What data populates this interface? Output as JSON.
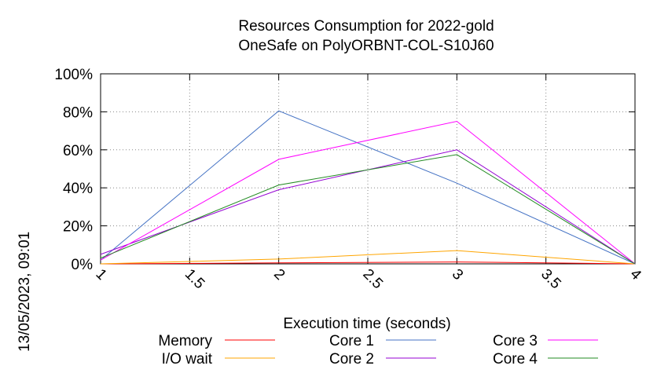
{
  "chart_data": {
    "type": "line",
    "title": "Resources Consumption for 2022-gold",
    "subtitle": "OneSafe on PolyORBNT-COL-S10J60",
    "xlabel": "Execution time (seconds)",
    "ylabel": "",
    "timestamp": "13/05/2023, 09:01",
    "x": [
      1,
      2,
      3,
      4
    ],
    "xlim": [
      1,
      4
    ],
    "ylim": [
      0,
      100
    ],
    "x_ticks": [
      "1",
      "1.5",
      "2",
      "2.5",
      "3",
      "3.5",
      "4"
    ],
    "y_ticks": [
      "0%",
      "20%",
      "40%",
      "60%",
      "80%",
      "100%"
    ],
    "grid": true,
    "legend_position": "bottom",
    "series": [
      {
        "name": "Memory",
        "color": "#ff0000",
        "values": [
          0,
          0.5,
          1,
          0
        ]
      },
      {
        "name": "I/O wait",
        "color": "#ffa500",
        "values": [
          0,
          2.5,
          7,
          0
        ]
      },
      {
        "name": "Core 1",
        "color": "#4472c4",
        "values": [
          2,
          80.5,
          42.5,
          0
        ]
      },
      {
        "name": "Core 2",
        "color": "#9400d3",
        "values": [
          5,
          39,
          60,
          0
        ]
      },
      {
        "name": "Core 3",
        "color": "#ff00ff",
        "values": [
          2,
          55,
          75,
          0
        ]
      },
      {
        "name": "Core 4",
        "color": "#228b22",
        "values": [
          3,
          41.5,
          57.5,
          0
        ]
      }
    ]
  }
}
